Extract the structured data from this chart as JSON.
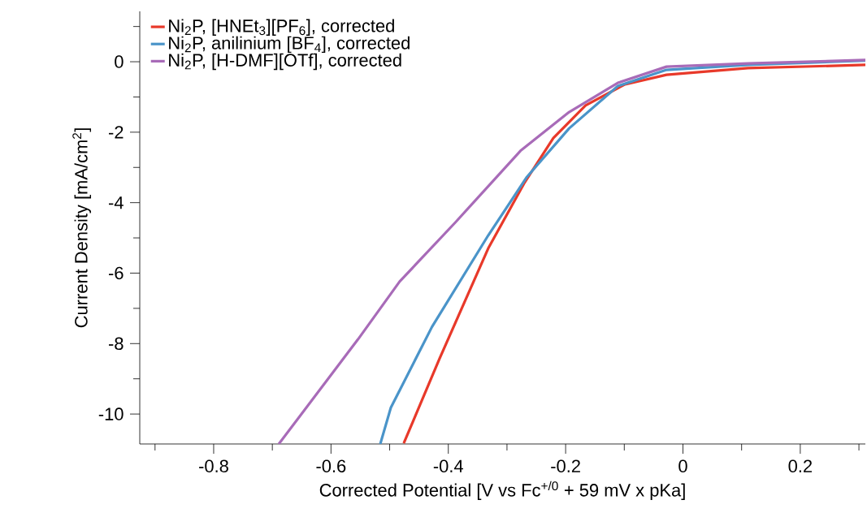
{
  "chart_data": {
    "type": "line",
    "xlabel": "Corrected Potential [V vs Fc$^{+/0}$ + 59 mV x pKa]",
    "ylabel": "Current Density [mA/cm$^{2}$]",
    "xlim": [
      -0.926,
      0.311
    ],
    "ylim": [
      -10.85,
      1.43
    ],
    "xticks": [
      {
        "value": -0.9,
        "label": null
      },
      -0.8,
      {
        "value": -0.7,
        "label": null
      },
      -0.6,
      {
        "value": -0.5,
        "label": null
      },
      -0.4,
      {
        "value": -0.3,
        "label": null
      },
      -0.2,
      {
        "value": -0.1,
        "label": null
      },
      0,
      {
        "value": 0.1,
        "label": null
      },
      0.2,
      {
        "value": 0.3,
        "label": null
      }
    ],
    "yticks": [
      -10,
      {
        "value": -9,
        "label": null
      },
      -8,
      {
        "value": -7,
        "label": null
      },
      -6,
      {
        "value": -5,
        "label": null
      },
      -4,
      {
        "value": -3,
        "label": null
      },
      -2,
      {
        "value": -1,
        "label": null
      },
      0,
      {
        "value": 1,
        "label": null
      }
    ],
    "legend": "top left",
    "grid": false,
    "marker": "none",
    "line_style": "solid",
    "series": [
      {
        "name": "Ni$_{2}$P, [HNEt$_{3}$][PF$_{6}$], corrected",
        "color": "#e8392a",
        "x": [
          -0.476,
          -0.415,
          -0.332,
          -0.271,
          -0.221,
          -0.166,
          -0.1,
          -0.028,
          0.111,
          0.311
        ],
        "values": [
          -10.83,
          -8.43,
          -5.3,
          -3.46,
          -2.17,
          -1.24,
          -0.65,
          -0.37,
          -0.18,
          -0.09
        ]
      },
      {
        "name": "Ni$_{2}$P, anilinium [BF$_{4}$], corrected",
        "color": "#4a94c9",
        "x": [
          -0.516,
          -0.498,
          -0.428,
          -0.332,
          -0.266,
          -0.194,
          -0.111,
          -0.028,
          0.111,
          0.311
        ],
        "values": [
          -10.85,
          -9.82,
          -7.53,
          -4.93,
          -3.27,
          -1.89,
          -0.69,
          -0.23,
          -0.09,
          0.03
        ]
      },
      {
        "name": "Ni$_{2}$P, [H-DMF][OTf], corrected",
        "color": "#a86bb8",
        "x": [
          -0.689,
          -0.554,
          -0.483,
          -0.388,
          -0.277,
          -0.194,
          -0.111,
          -0.028,
          0.111,
          0.311
        ],
        "values": [
          -10.85,
          -7.88,
          -6.24,
          -4.56,
          -2.53,
          -1.43,
          -0.6,
          -0.14,
          -0.05,
          0.05
        ]
      }
    ]
  }
}
